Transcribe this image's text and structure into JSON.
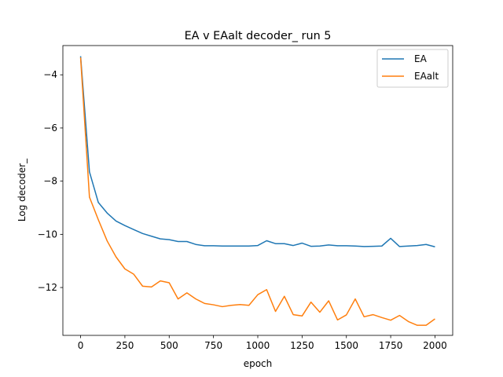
{
  "chart_data": {
    "type": "line",
    "title": "EA v EAalt decoder_ run 5",
    "xlabel": "epoch",
    "ylabel": "Log decoder_",
    "xlim": [
      -100,
      2100
    ],
    "ylim": [
      -13.8,
      -2.9
    ],
    "xticks": [
      0,
      250,
      500,
      750,
      1000,
      1250,
      1500,
      1750,
      2000
    ],
    "xtick_labels": [
      "0",
      "250",
      "500",
      "750",
      "1000",
      "1250",
      "1500",
      "1750",
      "2000"
    ],
    "yticks": [
      -4,
      -6,
      -8,
      -10,
      -12
    ],
    "ytick_labels": [
      "−4",
      "−6",
      "−8",
      "−10",
      "−12"
    ],
    "grid": false,
    "legend": "top-right",
    "x": [
      0,
      50,
      100,
      150,
      200,
      250,
      300,
      350,
      400,
      450,
      500,
      550,
      600,
      650,
      700,
      750,
      800,
      850,
      900,
      950,
      1000,
      1050,
      1100,
      1150,
      1200,
      1250,
      1300,
      1350,
      1400,
      1450,
      1500,
      1550,
      1600,
      1650,
      1700,
      1750,
      1800,
      1850,
      1900,
      1950,
      2000
    ],
    "series": [
      {
        "name": "EA",
        "color": "#1f77b4",
        "values": [
          -3.3,
          -7.65,
          -8.8,
          -9.2,
          -9.5,
          -9.67,
          -9.82,
          -9.97,
          -10.07,
          -10.17,
          -10.2,
          -10.27,
          -10.27,
          -10.38,
          -10.43,
          -10.43,
          -10.44,
          -10.44,
          -10.44,
          -10.44,
          -10.42,
          -10.24,
          -10.35,
          -10.35,
          -10.42,
          -10.33,
          -10.45,
          -10.44,
          -10.4,
          -10.43,
          -10.43,
          -10.44,
          -10.46,
          -10.45,
          -10.44,
          -10.15,
          -10.46,
          -10.44,
          -10.42,
          -10.38,
          -10.47
        ]
      },
      {
        "name": "EAalt",
        "color": "#ff7f0e",
        "values": [
          -3.35,
          -8.6,
          -9.45,
          -10.25,
          -10.85,
          -11.3,
          -11.5,
          -11.95,
          -11.98,
          -11.75,
          -11.82,
          -12.43,
          -12.2,
          -12.43,
          -12.6,
          -12.65,
          -12.72,
          -12.67,
          -12.64,
          -12.67,
          -12.27,
          -12.08,
          -12.9,
          -12.33,
          -13.02,
          -13.07,
          -12.55,
          -12.93,
          -12.5,
          -13.22,
          -13.03,
          -12.43,
          -13.1,
          -13.02,
          -13.13,
          -13.23,
          -13.05,
          -13.28,
          -13.42,
          -13.42,
          -13.18
        ]
      }
    ]
  }
}
